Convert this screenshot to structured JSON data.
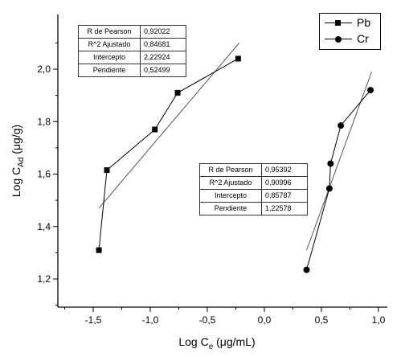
{
  "chart_data": {
    "type": "scatter",
    "xlabel_main": "Log C",
    "xlabel_sub": "e",
    "xlabel_unit": " (μg/mL)",
    "ylabel_main": "Log C",
    "ylabel_sub": "Ad",
    "ylabel_unit": " (μg/g)",
    "xlim": [
      -1.75,
      1.0
    ],
    "ylim": [
      1.1,
      2.18
    ],
    "x_ticks": [
      -1.5,
      -1.0,
      -0.5,
      0.0,
      0.5,
      1.0
    ],
    "x_tick_labels": [
      "-1,5",
      "-1,0",
      "-0,5",
      "0,0",
      "0,5",
      "1,0"
    ],
    "y_ticks": [
      1.2,
      1.4,
      1.6,
      1.8,
      2.0
    ],
    "y_tick_labels": [
      "1,2",
      "1,4",
      "1,6",
      "1,8",
      "2,0"
    ],
    "legend_position": "top-right",
    "series": [
      {
        "name": "Pb",
        "marker": "square",
        "x": [
          -1.45,
          -1.38,
          -0.96,
          -0.76,
          -0.23
        ],
        "y": [
          1.31,
          1.615,
          1.77,
          1.91,
          2.04
        ],
        "fit": {
          "x": [
            -1.45,
            -0.22
          ],
          "y": [
            1.47,
            2.1
          ]
        }
      },
      {
        "name": "Cr",
        "marker": "circle",
        "x": [
          0.37,
          0.57,
          0.58,
          0.67,
          0.93
        ],
        "y": [
          1.235,
          1.545,
          1.64,
          1.785,
          1.92
        ],
        "fit": {
          "x": [
            0.37,
            0.94
          ],
          "y": [
            1.31,
            1.99
          ]
        }
      }
    ],
    "stats_tables": [
      {
        "rows": [
          {
            "label": "R de Pearson",
            "value": "0,92022"
          },
          {
            "label": "R^2 Ajustado",
            "value": "0,84681"
          },
          {
            "label": "Intercepto",
            "value": "2,22924"
          },
          {
            "label": "Pendiente",
            "value": "0,52499"
          }
        ]
      },
      {
        "rows": [
          {
            "label": "R de Pearson",
            "value": "0,95392"
          },
          {
            "label": "R^2 Ajustado",
            "value": "0,90996"
          },
          {
            "label": "Intercepto",
            "value": "0,85787"
          },
          {
            "label": "Pendiente",
            "value": "1,22578"
          }
        ]
      }
    ],
    "colors": {
      "marker": "#000000",
      "line": "#000000",
      "axis": "#000000"
    }
  }
}
